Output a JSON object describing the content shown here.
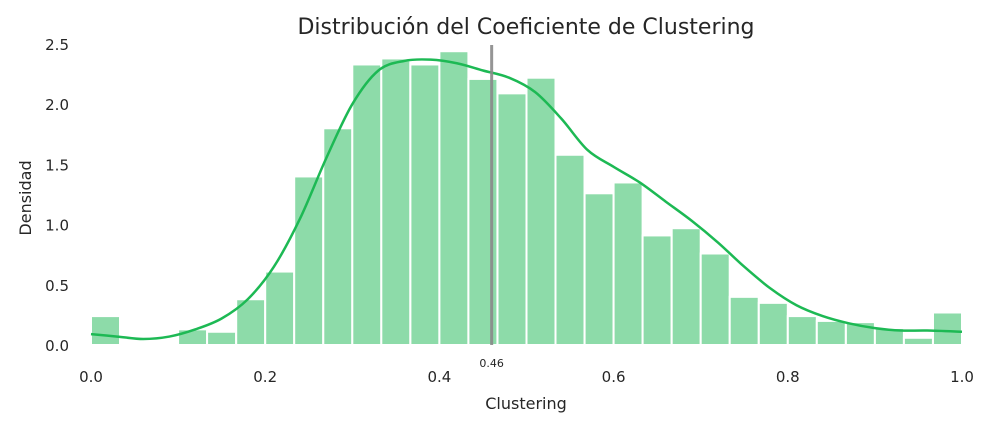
{
  "chart_data": {
    "type": "bar",
    "title": "Distribución del Coeficiente de Clustering",
    "xlabel": "Clustering",
    "ylabel": "Densidad",
    "xlim": [
      0.0,
      1.0
    ],
    "ylim": [
      0.0,
      2.5
    ],
    "xticks": [
      "0.0",
      "0.2",
      "0.4",
      "0.6",
      "0.8",
      "1.0"
    ],
    "yticks": [
      "0.0",
      "0.5",
      "1.0",
      "1.5",
      "2.0",
      "2.5"
    ],
    "grid": false,
    "bin_width": 0.0333,
    "bins_start": [
      0.0,
      0.0333,
      0.0667,
      0.1,
      0.1333,
      0.1667,
      0.2,
      0.2333,
      0.2667,
      0.3,
      0.3333,
      0.3667,
      0.4,
      0.4333,
      0.4667,
      0.5,
      0.5333,
      0.5667,
      0.6,
      0.6333,
      0.6667,
      0.7,
      0.7333,
      0.7667,
      0.8,
      0.8333,
      0.8667,
      0.9,
      0.9333,
      0.9667
    ],
    "values": [
      0.24,
      0.01,
      0.01,
      0.13,
      0.11,
      0.38,
      0.61,
      1.4,
      1.8,
      2.33,
      2.38,
      2.33,
      2.44,
      2.21,
      2.09,
      2.22,
      1.58,
      1.26,
      1.35,
      0.91,
      0.97,
      0.76,
      0.4,
      0.35,
      0.24,
      0.2,
      0.19,
      0.14,
      0.06,
      0.27
    ],
    "kde": {
      "x": [
        0.0,
        0.03,
        0.06,
        0.09,
        0.12,
        0.15,
        0.18,
        0.21,
        0.24,
        0.27,
        0.3,
        0.33,
        0.36,
        0.39,
        0.42,
        0.45,
        0.48,
        0.51,
        0.54,
        0.57,
        0.6,
        0.63,
        0.66,
        0.69,
        0.72,
        0.75,
        0.78,
        0.81,
        0.84,
        0.87,
        0.9,
        0.93,
        0.96,
        1.0
      ],
      "y": [
        0.09,
        0.07,
        0.05,
        0.07,
        0.13,
        0.22,
        0.38,
        0.65,
        1.05,
        1.55,
        2.0,
        2.28,
        2.36,
        2.37,
        2.34,
        2.28,
        2.22,
        2.1,
        1.88,
        1.62,
        1.48,
        1.35,
        1.19,
        1.03,
        0.85,
        0.65,
        0.47,
        0.33,
        0.24,
        0.18,
        0.14,
        0.12,
        0.12,
        0.11
      ]
    },
    "vline": {
      "x": 0.46,
      "label": "0.46"
    },
    "colors": {
      "bars": "#8ddba9",
      "kde": "#1db954",
      "vline": "#8a8a8a",
      "bar_edge": "#ffffff"
    }
  }
}
